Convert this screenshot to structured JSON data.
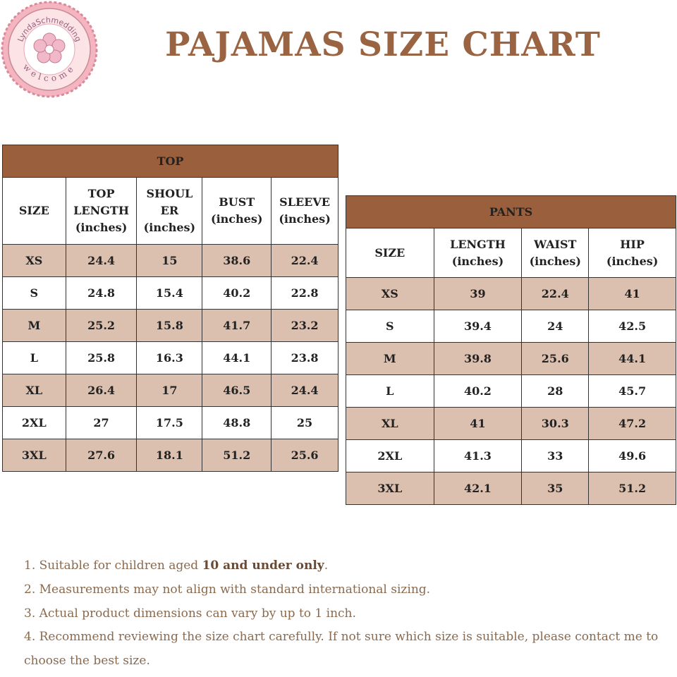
{
  "logo": {
    "arc_text": "LyndaSchmedding",
    "bottom_text": "welcome"
  },
  "title": "PAJAMAS SIZE CHART",
  "top_table": {
    "title": "TOP",
    "headers": [
      [
        "SIZE"
      ],
      [
        "TOP",
        "LENGTH",
        "(inches)"
      ],
      [
        "SHOUL",
        "ER",
        "(inches)"
      ],
      [
        "BUST",
        "(inches)"
      ],
      [
        "SLEEVE",
        "(inches)"
      ]
    ],
    "rows": [
      [
        "XS",
        24.4,
        15,
        38.6,
        22.4
      ],
      [
        "S",
        24.8,
        15.4,
        40.2,
        22.8
      ],
      [
        "M",
        25.2,
        15.8,
        41.7,
        23.2
      ],
      [
        "L",
        25.8,
        16.3,
        44.1,
        23.8
      ],
      [
        "XL",
        26.4,
        17,
        46.5,
        24.4
      ],
      [
        "2XL",
        27,
        17.5,
        48.8,
        25
      ],
      [
        "3XL",
        27.6,
        18.1,
        51.2,
        25.6
      ]
    ]
  },
  "pants_table": {
    "title": "PANTS",
    "headers": [
      [
        "SIZE"
      ],
      [
        "LENGTH",
        "(inches)"
      ],
      [
        "WAIST",
        "(inches)"
      ],
      [
        "HIP",
        "(inches)"
      ]
    ],
    "rows": [
      [
        "XS",
        39,
        22.4,
        41
      ],
      [
        "S",
        39.4,
        24,
        42.5
      ],
      [
        "M",
        39.8,
        25.6,
        44.1
      ],
      [
        "L",
        40.2,
        28,
        45.7
      ],
      [
        "XL",
        41,
        30.3,
        47.2
      ],
      [
        "2XL",
        41.3,
        33,
        49.6
      ],
      [
        "3XL",
        42.1,
        35,
        51.2
      ]
    ]
  },
  "notes": [
    [
      "1. Suitable for children aged ",
      "10 and under only",
      "."
    ],
    [
      "2. Measurements may not align with standard international sizing."
    ],
    [
      "3. Actual product dimensions can vary by up to 1 inch."
    ],
    [
      "4. Recommend reviewing the size chart carefully. If not sure which size is suitable, please contact me to choose the best size."
    ]
  ]
}
